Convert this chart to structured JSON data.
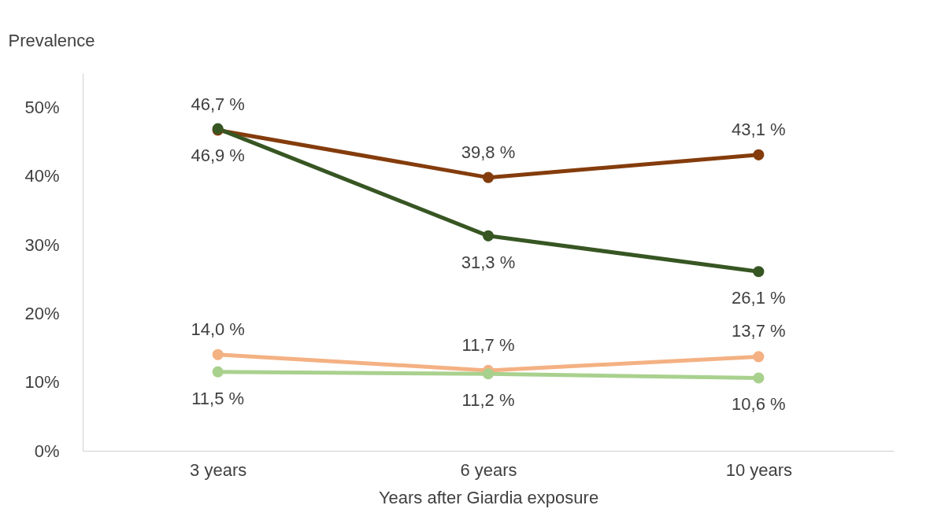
{
  "chart_data": {
    "type": "line",
    "ylabel": "Prevalence",
    "xlabel": "Years after Giardia exposure",
    "categories": [
      "3 years",
      "6 years",
      "10 years"
    ],
    "ylim": [
      0,
      55
    ],
    "yticks": [
      {
        "value": 0,
        "label": "0%"
      },
      {
        "value": 10,
        "label": "10%"
      },
      {
        "value": 20,
        "label": "20%"
      },
      {
        "value": 30,
        "label": "30%"
      },
      {
        "value": 40,
        "label": "40%"
      },
      {
        "value": 50,
        "label": "50%"
      }
    ],
    "grid": false,
    "legend": false,
    "marker": "circle",
    "line_style": "solid",
    "series": [
      {
        "color": "#843c0c",
        "values": [
          46.7,
          39.8,
          43.1
        ],
        "value_labels": [
          "46,7 %",
          "39,8 %",
          "43,1 %"
        ]
      },
      {
        "color": "#375623",
        "values": [
          46.9,
          31.3,
          26.1
        ],
        "value_labels": [
          "46,9 %",
          "31,3 %",
          "26,1 %"
        ]
      },
      {
        "color": "#f4b183",
        "values": [
          14.0,
          11.7,
          13.7
        ],
        "value_labels": [
          "14,0 %",
          "11,7 %",
          "13,7 %"
        ]
      },
      {
        "color": "#a9d18e",
        "values": [
          11.5,
          11.2,
          10.6
        ],
        "value_labels": [
          "11,5 %",
          "11,2 %",
          "10,6 %"
        ]
      }
    ]
  }
}
